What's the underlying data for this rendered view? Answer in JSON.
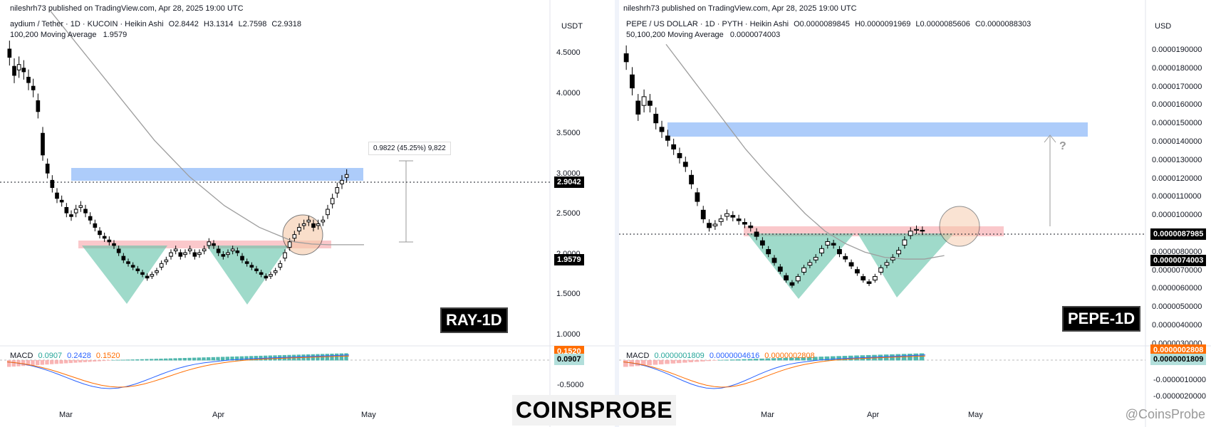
{
  "brand": "COINSPROBE",
  "watermark": "@CoinsProbe",
  "panels": [
    {
      "publisher": "nileshrh73 published on TradingView.com, Apr 28, 2025 19:00 UTC",
      "symbol_line": "aydium / Tether · 1D · KUCOIN · Heikin Ashi",
      "ohlc": {
        "o": "O2.8442",
        "h": "H3.1314",
        "l": "L2.7598",
        "c": "C2.9318"
      },
      "ma_line": "100,200 Moving Average",
      "ma_value": "1.9579",
      "currency": "USDT",
      "y_ticks": [
        "4.5000",
        "4.0000",
        "3.5000",
        "3.0000",
        "2.5000",
        "2.0000",
        "1.5000",
        "1.0000"
      ],
      "macd_ticks": [
        "-0.5000"
      ],
      "x_ticks": [
        "Mar",
        "Apr",
        "May"
      ],
      "price_tag": "2.9042",
      "ma_tag": "1.9579",
      "measure_label": "0.9822 (45.25%) 9,822",
      "macd": {
        "label": "MACD",
        "v1": "0.0907",
        "v2": "0.2428",
        "v3": "0.1520"
      },
      "macd_tags": [
        "0.1520",
        "0.0907"
      ],
      "ticker_label": "RAY-1D",
      "colors": {
        "resistance": "#6aa3f5",
        "neckline": "#f59aa0",
        "pattern": "#5fc1a7",
        "circle": "#f6c9a8"
      },
      "chart_data": {
        "type": "candlestick",
        "title": "",
        "ylim": [
          0.7,
          4.85
        ],
        "series_close": [
          4.55,
          4.3,
          4.45,
          4.35,
          4.2,
          4.1,
          3.8,
          3.2,
          2.95,
          2.75,
          2.6,
          2.55,
          2.4,
          2.35,
          2.45,
          2.5,
          2.4,
          2.3,
          2.2,
          2.1,
          2.05,
          2.0,
          1.95,
          1.85,
          1.75,
          1.7,
          1.65,
          1.6,
          1.55,
          1.5,
          1.55,
          1.6,
          1.7,
          1.75,
          1.85,
          1.9,
          1.8,
          1.85,
          1.9,
          1.8,
          1.85,
          1.9,
          2.0,
          1.95,
          1.85,
          1.8,
          1.85,
          1.9,
          1.85,
          1.75,
          1.7,
          1.65,
          1.6,
          1.55,
          1.5,
          1.55,
          1.6,
          1.7,
          1.85,
          2.0,
          2.1,
          2.2,
          2.25,
          2.3,
          2.2,
          2.25,
          2.3,
          2.45,
          2.6,
          2.75,
          2.85,
          2.93
        ],
        "ma_series": [
          5.2,
          4.9,
          4.6,
          4.3,
          4.0,
          3.7,
          3.4,
          3.15,
          2.9,
          2.7,
          2.5,
          2.35,
          2.2,
          2.1,
          2.0,
          1.97,
          1.96,
          1.96,
          1.96
        ],
        "annotations": [
          "0.9822 (45.25%) 9,822"
        ]
      }
    },
    {
      "publisher": "nileshrh73 published on TradingView.com, Apr 28, 2025 19:00 UTC",
      "symbol_line": "PEPE / US DOLLAR · 1D · PYTH · Heikin Ashi",
      "ohlc": {
        "o": "O0.0000089845",
        "h": "H0.0000091969",
        "l": "L0.0000085606",
        "c": "C0.0000088303"
      },
      "ma_line": "50,100,200 Moving Average",
      "ma_value": "0.0000074003",
      "currency": "USD",
      "y_ticks": [
        "0.0000190000",
        "0.0000180000",
        "0.0000170000",
        "0.0000160000",
        "0.0000150000",
        "0.0000140000",
        "0.0000130000",
        "0.0000120000",
        "0.0000110000",
        "0.0000100000",
        "0.0000090000",
        "0.0000080000",
        "0.0000070000",
        "0.0000060000",
        "0.0000050000",
        "0.0000040000",
        "0.0000030000"
      ],
      "macd_ticks": [
        "-0.0000010000",
        "-0.0000020000"
      ],
      "x_ticks": [
        "Mar",
        "Apr",
        "May"
      ],
      "price_tag": "0.0000087985",
      "ma_tag": "0.0000074003",
      "question_mark": "?",
      "macd": {
        "label": "MACD",
        "v1": "0.0000001809",
        "v2": "0.0000004616",
        "v3": "0.0000002808"
      },
      "macd_tags": [
        "0.0000002808",
        "0.0000001809"
      ],
      "ticker_label": "PEPE-1D",
      "colors": {
        "resistance": "#6aa3f5",
        "neckline": "#f59aa0",
        "pattern": "#5fc1a7"
      },
      "chart_data": {
        "type": "candlestick",
        "title": "",
        "ylim": [
          2.8e-06,
          2e-05
        ],
        "series_close": [
          1.85e-05,
          1.7e-05,
          1.55e-05,
          1.65e-05,
          1.6e-05,
          1.5e-05,
          1.45e-05,
          1.4e-05,
          1.35e-05,
          1.3e-05,
          1.25e-05,
          1.15e-05,
          1.05e-05,
          9.5e-06,
          9e-06,
          9.2e-06,
          9.5e-06,
          9.8e-06,
          9.6e-06,
          9.4e-06,
          9.2e-06,
          9e-06,
          8.5e-06,
          8e-06,
          7.5e-06,
          7e-06,
          6.5e-06,
          6e-06,
          5.7e-06,
          6.2e-06,
          6.7e-06,
          7e-06,
          7.3e-06,
          7.8e-06,
          8.2e-06,
          8e-06,
          7.5e-06,
          7.2e-06,
          6.8e-06,
          6.4e-06,
          6e-06,
          5.8e-06,
          6.2e-06,
          6.7e-06,
          7e-06,
          7.3e-06,
          7.7e-06,
          8.3e-06,
          8.8e-06,
          8.9e-06,
          8.8e-06
        ],
        "ma_series": [
          1.95e-05,
          1.8e-05,
          1.65e-05,
          1.5e-05,
          1.35e-05,
          1.22e-05,
          1.1e-05,
          9.8e-06,
          8.8e-06,
          8.1e-06,
          7.6e-06,
          7.3e-06,
          7.2e-06,
          7.2e-06,
          7.4e-06
        ],
        "annotations": [
          "?"
        ]
      }
    }
  ]
}
